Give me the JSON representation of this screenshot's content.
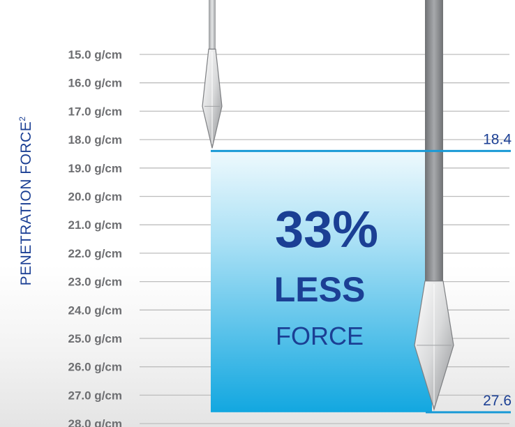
{
  "chart_data": {
    "type": "bar",
    "ylabel": "PENETRATION FORCE",
    "ylabel_superscript": "2",
    "yunit": "g/cm",
    "ylim": [
      15.0,
      28.0
    ],
    "y_inverted": true,
    "tick_values": [
      15,
      16,
      17,
      18,
      19,
      20,
      21,
      22,
      23,
      24,
      25,
      26,
      27,
      28
    ],
    "tick_labels": [
      "15.0 g/cm",
      "16.0 g/cm",
      "17.0 g/cm",
      "18.0 g/cm",
      "19.0 g/cm",
      "20.0 g/cm",
      "21.0 g/cm",
      "22.0 g/cm",
      "23.0 g/cm",
      "24.0 g/cm",
      "25.0 g/cm",
      "26.0 g/cm",
      "27.0 g/cm",
      "28.0 g/cm"
    ],
    "series": [
      {
        "value": 18.4,
        "label": "18.4"
      },
      {
        "value": 27.6,
        "label": "27.6"
      }
    ],
    "difference_fill": {
      "from": 18.4,
      "to": 27.6
    },
    "callout": {
      "percent": "33%",
      "line2": "LESS",
      "line3": "FORCE"
    },
    "grid": true
  },
  "colors": {
    "accent": "#1b3f94",
    "fill_top": "#eaf8fd",
    "fill_bottom": "#14a9e1",
    "value_line": "#1a9ad6",
    "gridline": "#bdbdbd",
    "needle_dark": "#7d7f82",
    "needle_light": "#c5c7c9"
  },
  "icons": {
    "needle_left": "needle-icon",
    "needle_right": "needle-icon"
  }
}
